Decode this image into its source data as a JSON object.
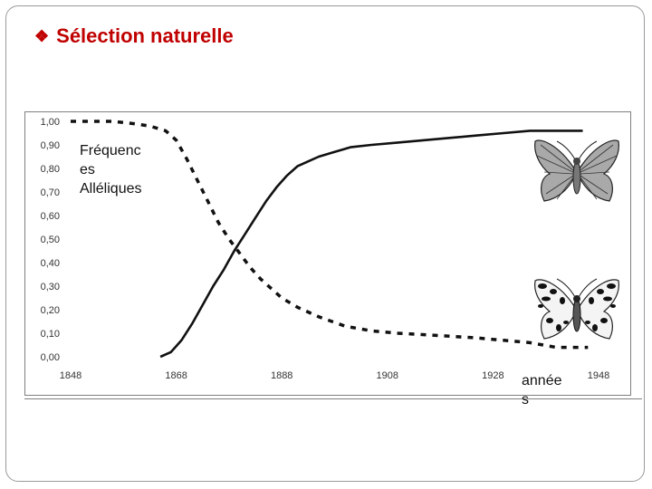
{
  "slide": {
    "bullet_icon": "diamond-bullet-icon",
    "title": "Sélection naturelle"
  },
  "chart_data": {
    "type": "line",
    "ylabel": "Fréquences Alléliques",
    "ylabel_lines": [
      "Fréquenc",
      "es",
      "Alléliques"
    ],
    "xlabel": "années",
    "xlabel_lines": [
      "année",
      "s"
    ],
    "xlim": [
      1848,
      1948
    ],
    "ylim": [
      0,
      1
    ],
    "x_ticks": [
      "1848",
      "1868",
      "1888",
      "1908",
      "1928",
      "1948"
    ],
    "y_ticks": [
      "0,00",
      "0,10",
      "0,20",
      "0,30",
      "0,40",
      "0,50",
      "0,60",
      "0,70",
      "0,80",
      "0,90",
      "1,00"
    ],
    "series": [
      {
        "style": "solid",
        "color": "#111111",
        "icon": "dark-moth-icon",
        "x": [
          1865,
          1867,
          1869,
          1871,
          1873,
          1875,
          1877,
          1879,
          1881,
          1883,
          1885,
          1887,
          1889,
          1891,
          1893,
          1895,
          1898,
          1901,
          1905,
          1910,
          1915,
          1920,
          1925,
          1930,
          1935,
          1940,
          1945
        ],
        "y": [
          0,
          0.02,
          0.07,
          0.14,
          0.22,
          0.3,
          0.37,
          0.45,
          0.52,
          0.59,
          0.66,
          0.72,
          0.77,
          0.81,
          0.83,
          0.85,
          0.87,
          0.89,
          0.9,
          0.91,
          0.92,
          0.93,
          0.94,
          0.95,
          0.96,
          0.96,
          0.96
        ]
      },
      {
        "style": "dashed",
        "color": "#111111",
        "icon": "light-moth-icon",
        "x": [
          1848,
          1852,
          1856,
          1860,
          1863,
          1866,
          1868,
          1870,
          1872,
          1874,
          1876,
          1878,
          1880,
          1882,
          1884,
          1886,
          1888,
          1891,
          1895,
          1900,
          1905,
          1910,
          1918,
          1925,
          1930,
          1935,
          1940,
          1946
        ],
        "y": [
          1.0,
          1.0,
          1.0,
          0.99,
          0.98,
          0.96,
          0.92,
          0.84,
          0.75,
          0.66,
          0.57,
          0.5,
          0.44,
          0.38,
          0.33,
          0.29,
          0.25,
          0.21,
          0.17,
          0.13,
          0.11,
          0.1,
          0.09,
          0.08,
          0.07,
          0.06,
          0.04,
          0.04
        ]
      }
    ]
  }
}
